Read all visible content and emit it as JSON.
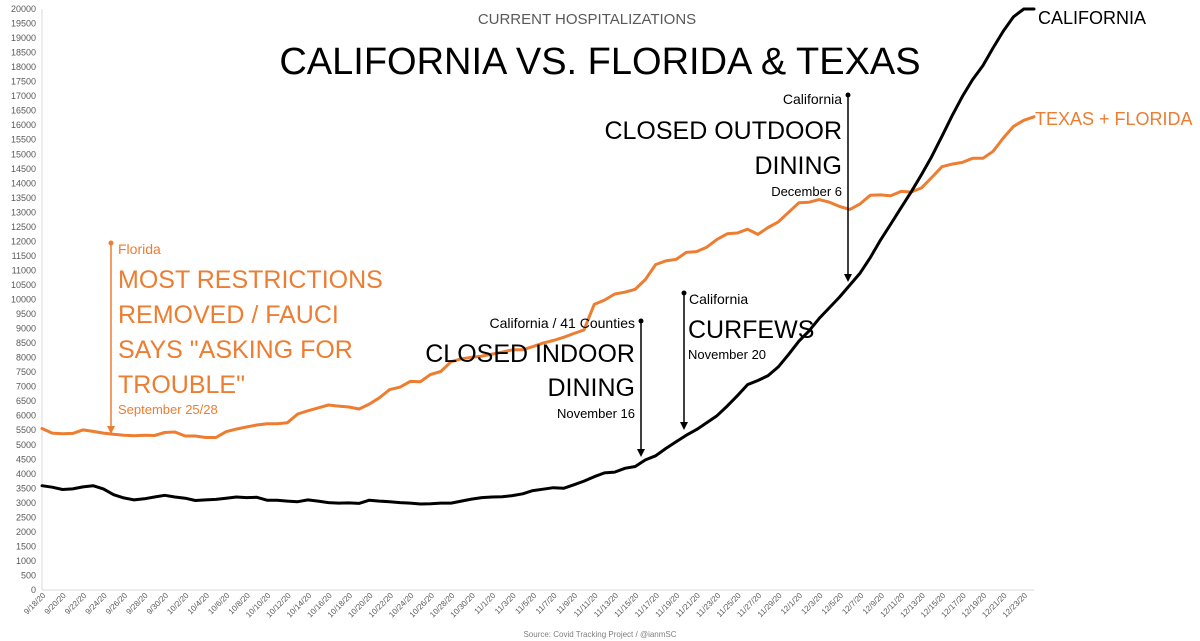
{
  "chart_data": {
    "type": "line",
    "subtitle": "CURRENT HOSPITALIZATIONS",
    "title": "CALIFORNIA VS. FLORIDA & TEXAS",
    "source": "Source: Covid Tracking Project / @ianmSC",
    "ylim": [
      0,
      20000
    ],
    "yticks": [
      0,
      500,
      1000,
      1500,
      2000,
      2500,
      3000,
      3500,
      4000,
      4500,
      5000,
      5500,
      6000,
      6500,
      7000,
      7500,
      8000,
      8500,
      9000,
      9500,
      10000,
      10500,
      11000,
      11500,
      12000,
      12500,
      13000,
      13500,
      14000,
      14500,
      15000,
      15500,
      16000,
      16500,
      17000,
      17500,
      18000,
      18500,
      19000,
      19500,
      20000
    ],
    "yticklabels": [
      "0",
      "500",
      "1000",
      "1500",
      "2000",
      "2500",
      "3000",
      "3500",
      "4000",
      "4500",
      "5000",
      "5500",
      "6000",
      "6500",
      "7000",
      "7500",
      "8000",
      "8500",
      "9000",
      "9500",
      "10000",
      "10500",
      "11000",
      "11500",
      "12000",
      "12500",
      "13000",
      "13500",
      "14000",
      "14500",
      "15000",
      "15500",
      "16000",
      "16500",
      "17000",
      "17500",
      "18000",
      "18500",
      "19000",
      "19500",
      "20000"
    ],
    "x_dates": [
      "9/18/20",
      "9/19/20",
      "9/20/20",
      "9/21/20",
      "9/22/20",
      "9/23/20",
      "9/24/20",
      "9/25/20",
      "9/26/20",
      "9/27/20",
      "9/28/20",
      "9/29/20",
      "9/30/20",
      "10/1/20",
      "10/2/20",
      "10/3/20",
      "10/4/20",
      "10/5/20",
      "10/6/20",
      "10/7/20",
      "10/8/20",
      "10/9/20",
      "10/10/20",
      "10/11/20",
      "10/12/20",
      "10/13/20",
      "10/14/20",
      "10/15/20",
      "10/16/20",
      "10/17/20",
      "10/18/20",
      "10/19/20",
      "10/20/20",
      "10/21/20",
      "10/22/20",
      "10/23/20",
      "10/24/20",
      "10/25/20",
      "10/26/20",
      "10/27/20",
      "10/28/20",
      "10/29/20",
      "10/30/20",
      "10/31/20",
      "11/1/20",
      "11/2/20",
      "11/3/20",
      "11/4/20",
      "11/5/20",
      "11/6/20",
      "11/7/20",
      "11/8/20",
      "11/9/20",
      "11/10/20",
      "11/11/20",
      "11/12/20",
      "11/13/20",
      "11/14/20",
      "11/15/20",
      "11/16/20",
      "11/17/20",
      "11/18/20",
      "11/19/20",
      "11/20/20",
      "11/21/20",
      "11/22/20",
      "11/23/20",
      "11/24/20",
      "11/25/20",
      "11/26/20",
      "11/27/20",
      "11/28/20",
      "11/29/20",
      "11/30/20",
      "12/1/20",
      "12/2/20",
      "12/3/20",
      "12/4/20",
      "12/5/20",
      "12/6/20",
      "12/7/20",
      "12/8/20",
      "12/9/20",
      "12/10/20",
      "12/11/20",
      "12/12/20",
      "12/13/20",
      "12/14/20",
      "12/15/20",
      "12/16/20",
      "12/17/20",
      "12/18/20",
      "12/19/20",
      "12/20/20",
      "12/21/20",
      "12/22/20",
      "12/23/20",
      "12/24/20"
    ],
    "xticklabels": [
      "9/18/20",
      "9/20/20",
      "9/22/20",
      "9/24/20",
      "9/26/20",
      "9/28/20",
      "9/30/20",
      "10/2/20",
      "10/4/20",
      "10/6/20",
      "10/8/20",
      "10/10/20",
      "10/12/20",
      "10/14/20",
      "10/16/20",
      "10/18/20",
      "10/20/20",
      "10/22/20",
      "10/24/20",
      "10/26/20",
      "10/28/20",
      "10/30/20",
      "11/1/20",
      "11/3/20",
      "11/5/20",
      "11/7/20",
      "11/9/20",
      "11/11/20",
      "11/13/20",
      "11/15/20",
      "11/17/20",
      "11/19/20",
      "11/21/20",
      "11/23/20",
      "11/25/20",
      "11/27/20",
      "11/29/20",
      "12/1/20",
      "12/3/20",
      "12/5/20",
      "12/7/20",
      "12/9/20",
      "12/11/20",
      "12/13/20",
      "12/15/20",
      "12/17/20",
      "12/19/20",
      "12/21/20",
      "12/23/20"
    ],
    "series": [
      {
        "name": "TEXAS + FLORIDA",
        "color": "#ed7d31",
        "values": [
          5560,
          5400,
          5380,
          5390,
          5510,
          5460,
          5400,
          5360,
          5330,
          5310,
          5330,
          5320,
          5420,
          5440,
          5300,
          5300,
          5250,
          5250,
          5450,
          5540,
          5610,
          5680,
          5720,
          5720,
          5760,
          6060,
          6170,
          6270,
          6370,
          6330,
          6300,
          6230,
          6400,
          6620,
          6900,
          6980,
          7180,
          7170,
          7420,
          7520,
          7860,
          7960,
          8010,
          8050,
          8120,
          8190,
          8270,
          8270,
          8380,
          8500,
          8590,
          8700,
          8830,
          8950,
          9830,
          9980,
          10190,
          10250,
          10350,
          10690,
          11200,
          11330,
          11380,
          11620,
          11650,
          11800,
          12070,
          12260,
          12290,
          12420,
          12240,
          12480,
          12670,
          13000,
          13330,
          13350,
          13440,
          13350,
          13200,
          13100,
          13290,
          13590,
          13600,
          13570,
          13720,
          13700,
          13840,
          14200,
          14570,
          14660,
          14720,
          14860,
          14860,
          15100,
          15560,
          15960,
          16170,
          16290
        ]
      },
      {
        "name": "CALIFORNIA",
        "color": "#000000",
        "values": [
          3590,
          3540,
          3460,
          3480,
          3550,
          3590,
          3480,
          3280,
          3170,
          3100,
          3140,
          3200,
          3260,
          3200,
          3160,
          3080,
          3100,
          3120,
          3160,
          3200,
          3180,
          3190,
          3090,
          3090,
          3060,
          3040,
          3100,
          3060,
          3010,
          2990,
          3000,
          2980,
          3090,
          3060,
          3040,
          3010,
          2990,
          2960,
          2970,
          2990,
          2990,
          3060,
          3130,
          3180,
          3200,
          3210,
          3250,
          3310,
          3420,
          3470,
          3520,
          3500,
          3620,
          3750,
          3900,
          4030,
          4060,
          4190,
          4250,
          4480,
          4620,
          4870,
          5100,
          5330,
          5520,
          5760,
          6000,
          6330,
          6690,
          7070,
          7210,
          7380,
          7680,
          8110,
          8560,
          8920,
          9350,
          9720,
          10090,
          10500,
          10910,
          11450,
          12050,
          12600,
          13160,
          13710,
          14300,
          14920,
          15620,
          16330,
          16990,
          17570,
          18050,
          18660,
          19240,
          19730,
          20000,
          20000
        ]
      }
    ],
    "series_labels": {
      "ca": "CALIFORNIA",
      "txfl": "TEXAS + FLORIDA"
    },
    "annotations": {
      "florida": {
        "state": "Florida",
        "event_lines": [
          "MOST RESTRICTIONS",
          "REMOVED / FAUCI",
          "SAYS \"ASKING FOR",
          "TROUBLE\""
        ],
        "date": "September 25/28"
      },
      "indoor": {
        "state": "California / 41 Counties",
        "event_lines": [
          "CLOSED INDOOR",
          "DINING"
        ],
        "date": "November 16"
      },
      "curfews": {
        "state": "California",
        "event_lines": [
          "CURFEWS"
        ],
        "date": "November 20"
      },
      "outdoor": {
        "state": "California",
        "event_lines": [
          "CLOSED OUTDOOR",
          "DINING"
        ],
        "date": "December 6"
      }
    },
    "grid": false,
    "legend": "none"
  }
}
